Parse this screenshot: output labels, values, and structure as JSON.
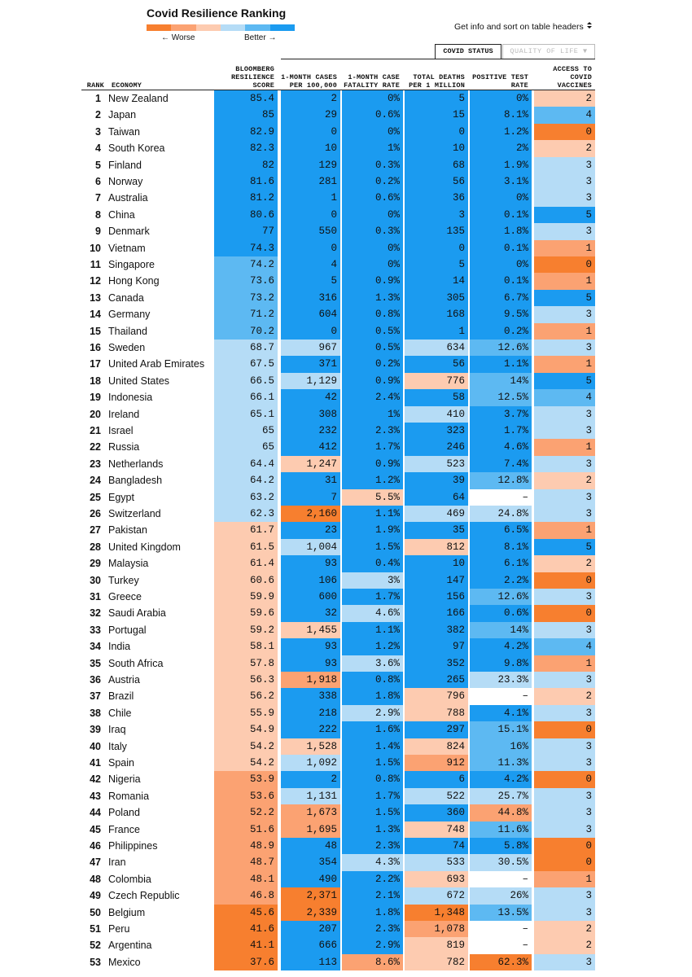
{
  "header": {
    "title": "Covid Resilience Ranking",
    "legend_worse": "← Worse",
    "legend_better": "Better →",
    "hint": "Get info and sort on table headers",
    "tabs": [
      "COVID STATUS",
      "QUALITY OF LIFE ▼"
    ]
  },
  "palette": {
    "0": "#f77f2f",
    "1": "#fba272",
    "2": "#fdcbb0",
    "3": "#b5dcf6",
    "4": "#5db9f2",
    "5": "#1b9bf0",
    "w": "#ffffff"
  },
  "table": {
    "columns": [
      "RANK",
      "ECONOMY",
      "BLOOMBERG RESILIENCE SCORE",
      "1-MONTH CASES PER 100,000",
      "1-MONTH CASE FATALITY RATE",
      "TOTAL DEATHS PER 1 MILLION",
      "POSITIVE TEST RATE",
      "ACCESS TO COVID VACCINES"
    ],
    "rows": [
      [
        "1",
        "New Zealand",
        "85.4",
        "2",
        "0%",
        "5",
        "0%",
        "2"
      ],
      [
        "2",
        "Japan",
        "85",
        "29",
        "0.6%",
        "15",
        "8.1%",
        "4"
      ],
      [
        "3",
        "Taiwan",
        "82.9",
        "0",
        "0%",
        "0",
        "1.2%",
        "0"
      ],
      [
        "4",
        "South Korea",
        "82.3",
        "10",
        "1%",
        "10",
        "2%",
        "2"
      ],
      [
        "5",
        "Finland",
        "82",
        "129",
        "0.3%",
        "68",
        "1.9%",
        "3"
      ],
      [
        "6",
        "Norway",
        "81.6",
        "281",
        "0.2%",
        "56",
        "3.1%",
        "3"
      ],
      [
        "7",
        "Australia",
        "81.2",
        "1",
        "0.6%",
        "36",
        "0%",
        "3"
      ],
      [
        "8",
        "China",
        "80.6",
        "0",
        "0%",
        "3",
        "0.1%",
        "5"
      ],
      [
        "9",
        "Denmark",
        "77",
        "550",
        "0.3%",
        "135",
        "1.8%",
        "3"
      ],
      [
        "10",
        "Vietnam",
        "74.3",
        "0",
        "0%",
        "0",
        "0.1%",
        "1"
      ],
      [
        "11",
        "Singapore",
        "74.2",
        "4",
        "0%",
        "5",
        "0%",
        "0"
      ],
      [
        "12",
        "Hong Kong",
        "73.6",
        "5",
        "0.9%",
        "14",
        "0.1%",
        "1"
      ],
      [
        "13",
        "Canada",
        "73.2",
        "316",
        "1.3%",
        "305",
        "6.7%",
        "5"
      ],
      [
        "14",
        "Germany",
        "71.2",
        "604",
        "0.8%",
        "168",
        "9.5%",
        "3"
      ],
      [
        "15",
        "Thailand",
        "70.2",
        "0",
        "0.5%",
        "1",
        "0.2%",
        "1"
      ],
      [
        "16",
        "Sweden",
        "68.7",
        "967",
        "0.5%",
        "634",
        "12.6%",
        "3"
      ],
      [
        "17",
        "United Arab Emirates",
        "67.5",
        "371",
        "0.2%",
        "56",
        "1.1%",
        "1"
      ],
      [
        "18",
        "United States",
        "66.5",
        "1,129",
        "0.9%",
        "776",
        "14%",
        "5"
      ],
      [
        "19",
        "Indonesia",
        "66.1",
        "42",
        "2.4%",
        "58",
        "12.5%",
        "4"
      ],
      [
        "20",
        "Ireland",
        "65.1",
        "308",
        "1%",
        "410",
        "3.7%",
        "3"
      ],
      [
        "21",
        "Israel",
        "65",
        "232",
        "2.3%",
        "323",
        "1.7%",
        "3"
      ],
      [
        "22",
        "Russia",
        "65",
        "412",
        "1.7%",
        "246",
        "4.6%",
        "1"
      ],
      [
        "23",
        "Netherlands",
        "64.4",
        "1,247",
        "0.9%",
        "523",
        "7.4%",
        "3"
      ],
      [
        "24",
        "Bangladesh",
        "64.2",
        "31",
        "1.2%",
        "39",
        "12.8%",
        "2"
      ],
      [
        "25",
        "Egypt",
        "63.2",
        "7",
        "5.5%",
        "64",
        "–",
        "3"
      ],
      [
        "26",
        "Switzerland",
        "62.3",
        "2,160",
        "1.1%",
        "469",
        "24.8%",
        "3"
      ],
      [
        "27",
        "Pakistan",
        "61.7",
        "23",
        "1.9%",
        "35",
        "6.5%",
        "1"
      ],
      [
        "28",
        "United Kingdom",
        "61.5",
        "1,004",
        "1.5%",
        "812",
        "8.1%",
        "5"
      ],
      [
        "29",
        "Malaysia",
        "61.4",
        "93",
        "0.4%",
        "10",
        "6.1%",
        "2"
      ],
      [
        "30",
        "Turkey",
        "60.6",
        "106",
        "3%",
        "147",
        "2.2%",
        "0"
      ],
      [
        "31",
        "Greece",
        "59.9",
        "600",
        "1.7%",
        "156",
        "12.6%",
        "3"
      ],
      [
        "32",
        "Saudi Arabia",
        "59.6",
        "32",
        "4.6%",
        "166",
        "0.6%",
        "0"
      ],
      [
        "33",
        "Portugal",
        "59.2",
        "1,455",
        "1.1%",
        "382",
        "14%",
        "3"
      ],
      [
        "34",
        "India",
        "58.1",
        "93",
        "1.2%",
        "97",
        "4.2%",
        "4"
      ],
      [
        "35",
        "South Africa",
        "57.8",
        "93",
        "3.6%",
        "352",
        "9.8%",
        "1"
      ],
      [
        "36",
        "Austria",
        "56.3",
        "1,918",
        "0.8%",
        "265",
        "23.3%",
        "3"
      ],
      [
        "37",
        "Brazil",
        "56.2",
        "338",
        "1.8%",
        "796",
        "–",
        "2"
      ],
      [
        "38",
        "Chile",
        "55.9",
        "218",
        "2.9%",
        "788",
        "4.1%",
        "3"
      ],
      [
        "39",
        "Iraq",
        "54.9",
        "222",
        "1.6%",
        "297",
        "15.1%",
        "0"
      ],
      [
        "40",
        "Italy",
        "54.2",
        "1,528",
        "1.4%",
        "824",
        "16%",
        "3"
      ],
      [
        "41",
        "Spain",
        "54.2",
        "1,092",
        "1.5%",
        "912",
        "11.3%",
        "3"
      ],
      [
        "42",
        "Nigeria",
        "53.9",
        "2",
        "0.8%",
        "6",
        "4.2%",
        "0"
      ],
      [
        "43",
        "Romania",
        "53.6",
        "1,131",
        "1.7%",
        "522",
        "25.7%",
        "3"
      ],
      [
        "44",
        "Poland",
        "52.2",
        "1,673",
        "1.5%",
        "360",
        "44.8%",
        "3"
      ],
      [
        "45",
        "France",
        "51.6",
        "1,695",
        "1.3%",
        "748",
        "11.6%",
        "3"
      ],
      [
        "46",
        "Philippines",
        "48.9",
        "48",
        "2.3%",
        "74",
        "5.8%",
        "0"
      ],
      [
        "47",
        "Iran",
        "48.7",
        "354",
        "4.3%",
        "533",
        "30.5%",
        "0"
      ],
      [
        "48",
        "Colombia",
        "48.1",
        "490",
        "2.2%",
        "693",
        "–",
        "1"
      ],
      [
        "49",
        "Czech Republic",
        "46.8",
        "2,371",
        "2.1%",
        "672",
        "26%",
        "3"
      ],
      [
        "50",
        "Belgium",
        "45.6",
        "2,339",
        "1.8%",
        "1,348",
        "13.5%",
        "3"
      ],
      [
        "51",
        "Peru",
        "41.6",
        "207",
        "2.3%",
        "1,078",
        "–",
        "2"
      ],
      [
        "52",
        "Argentina",
        "41.1",
        "666",
        "2.9%",
        "819",
        "–",
        "2"
      ],
      [
        "53",
        "Mexico",
        "37.6",
        "113",
        "8.6%",
        "782",
        "62.3%",
        "3"
      ]
    ],
    "shades": [
      "555552",
      "555554",
      "555550",
      "555552",
      "555553",
      "555553",
      "555553",
      "555555",
      "555553",
      "555551",
      "455550",
      "455551",
      "455555",
      "455553",
      "455551",
      "335343",
      "355551",
      "335245",
      "355544",
      "355353",
      "355553",
      "355551",
      "325353",
      "355542",
      "3525w3",
      "305333",
      "255551",
      "235255",
      "255552",
      "253550",
      "255543",
      "253550",
      "225543",
      "255554",
      "253551",
      "215533",
      "2552w2",
      "253253",
      "255540",
      "225243",
      "235143",
      "155550",
      "135333",
      "115513",
      "115243",
      "155550",
      "153330",
      "1552w1",
      "105333",
      "005043",
      "0551w2",
      "0552w2",
      "051203"
    ]
  }
}
